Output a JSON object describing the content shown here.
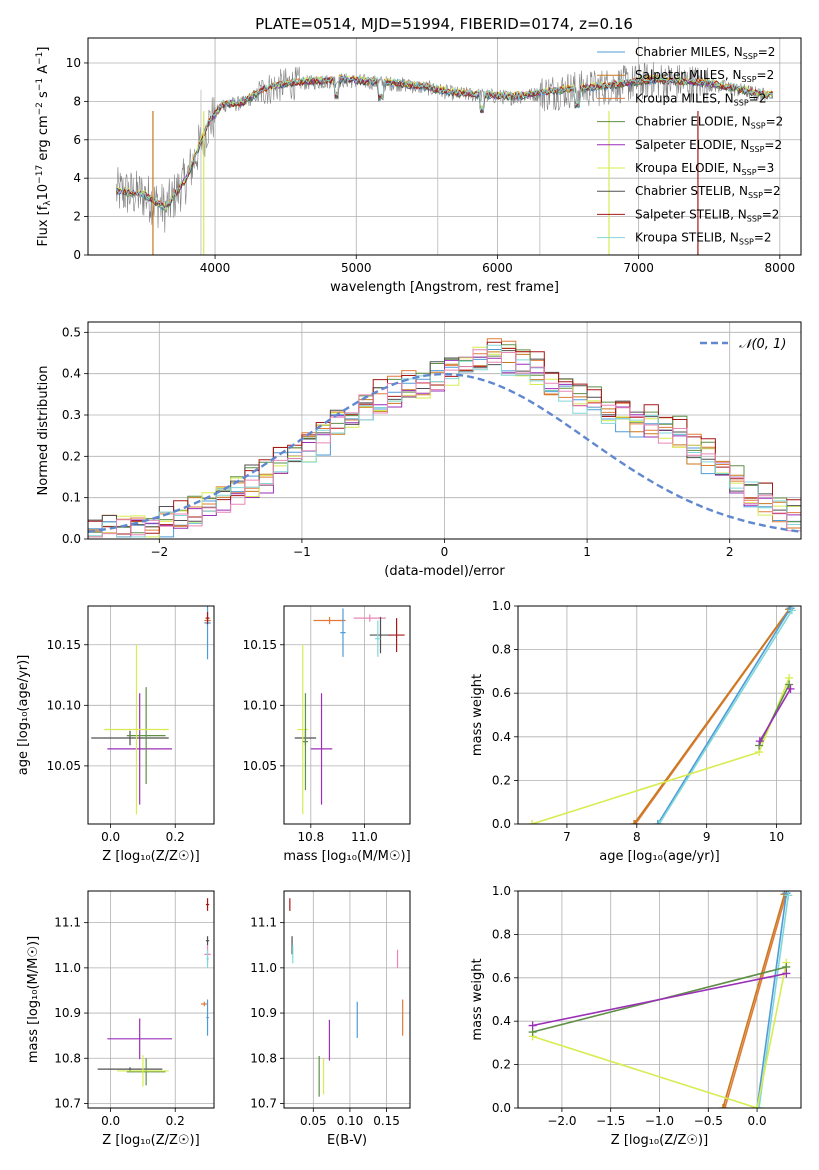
{
  "figure": {
    "title": "PLATE=0514, MJD=51994, FIBERID=0174, z=0.16",
    "colors": {
      "chabrier_miles": "#4f9bd8",
      "salpeter_miles": "#c8791f",
      "kroupa_miles": "#e07b39",
      "chabrier_elodie": "#5f8f45",
      "salpeter_elodie": "#9b2fb8",
      "kroupa_elodie": "#d8ec50",
      "chabrier_stelib": "#505050",
      "salpeter_stelib": "#a81818",
      "kroupa_stelib": "#80d8d8",
      "extra_pink": "#e886b5",
      "data": "#808080",
      "normal": "#6088d0"
    }
  },
  "chart_data": [
    {
      "id": "spectrum",
      "type": "line",
      "title": "PLATE=0514, MJD=51994, FIBERID=0174, z=0.16",
      "xlabel": "wavelength [Angstrom, rest frame]",
      "ylabel_parts": [
        "Flux [f",
        "λ",
        "10",
        "−17",
        " erg cm",
        "−2",
        " s",
        "−1",
        " A",
        "−1",
        "]"
      ],
      "xlim": [
        3100,
        8150
      ],
      "ylim": [
        0,
        11.3
      ],
      "xticks": [
        4000,
        5000,
        6000,
        7000,
        8000
      ],
      "yticks": [
        0,
        2,
        4,
        6,
        8,
        10
      ],
      "continuum": {
        "x": [
          3300,
          3500,
          3650,
          3800,
          3950,
          4050,
          4200,
          4350,
          4500,
          4700,
          4900,
          5100,
          5300,
          5500,
          5700,
          5900,
          6100,
          6300,
          6500,
          6700,
          6900,
          7100,
          7300,
          7500,
          7700,
          7900
        ],
        "y": [
          3.3,
          3.1,
          2.4,
          4.0,
          6.8,
          7.8,
          7.9,
          8.6,
          8.9,
          9.0,
          9.1,
          9.0,
          8.9,
          8.7,
          8.4,
          8.3,
          8.2,
          8.4,
          8.6,
          8.7,
          8.9,
          9.1,
          9.0,
          8.9,
          8.6,
          8.3
        ]
      },
      "series": [
        {
          "name": "Chabrier MILES, N_SSP=2",
          "label": "Chabrier MILES, N",
          "sub": "SSP",
          "suffix": "=2",
          "color": "#4f9bd8"
        },
        {
          "name": "Salpeter MILES, N_SSP=2",
          "label": "Salpeter MILES, N",
          "sub": "SSP",
          "suffix": "=2",
          "color": "#c8791f"
        },
        {
          "name": "Kroupa MILES, N_SSP=2",
          "label": "Kroupa MILES, N",
          "sub": "SSP",
          "suffix": "=2",
          "color": "#e07b39"
        },
        {
          "name": "Chabrier ELODIE, N_SSP=2",
          "label": "Chabrier ELODIE, N",
          "sub": "SSP",
          "suffix": "=2",
          "color": "#5f8f45"
        },
        {
          "name": "Salpeter ELODIE, N_SSP=2",
          "label": "Salpeter ELODIE, N",
          "sub": "SSP",
          "suffix": "=2",
          "color": "#9b2fb8"
        },
        {
          "name": "Kroupa ELODIE, N_SSP=3",
          "label": "Kroupa ELODIE, N",
          "sub": "SSP",
          "suffix": "=3",
          "color": "#d8ec50"
        },
        {
          "name": "Chabrier STELIB, N_SSP=2",
          "label": "Chabrier STELIB, N",
          "sub": "SSP",
          "suffix": "=2",
          "color": "#505050"
        },
        {
          "name": "Salpeter STELIB, N_SSP=2",
          "label": "Salpeter STELIB, N",
          "sub": "SSP",
          "suffix": "=2",
          "color": "#a81818"
        },
        {
          "name": "Kroupa STELIB, N_SSP=2",
          "label": "Kroupa STELIB, N",
          "sub": "SSP",
          "suffix": "=2",
          "color": "#80d8d8"
        }
      ],
      "legend": "upper right"
    },
    {
      "id": "residuals",
      "type": "histogram",
      "xlabel": "(data-model)/error",
      "ylabel": "Normed distribution",
      "xlim": [
        -2.5,
        2.5
      ],
      "ylim": [
        0,
        0.525
      ],
      "xticks": [
        -2,
        -1,
        0,
        1,
        2
      ],
      "yticks": [
        0.0,
        0.1,
        0.2,
        0.3,
        0.4,
        0.5
      ],
      "grid": true,
      "legend_label": "𝒩(0, 1)",
      "bin_width": 0.1,
      "base_shape": [
        0.015,
        0.02,
        0.025,
        0.03,
        0.035,
        0.045,
        0.06,
        0.07,
        0.09,
        0.1,
        0.12,
        0.14,
        0.15,
        0.19,
        0.21,
        0.22,
        0.25,
        0.28,
        0.3,
        0.32,
        0.34,
        0.36,
        0.37,
        0.38,
        0.39,
        0.41,
        0.42,
        0.44,
        0.45,
        0.44,
        0.43,
        0.41,
        0.38,
        0.36,
        0.34,
        0.33,
        0.31,
        0.3,
        0.29,
        0.28,
        0.27,
        0.25,
        0.22,
        0.2,
        0.17,
        0.14,
        0.12,
        0.09,
        0.07,
        0.05
      ]
    },
    {
      "id": "age_vs_Z",
      "type": "errorbar",
      "xlabel": "Z [log₁₀(Z/Z☉)]",
      "ylabel": "age  [log₁₀(age/yr)]",
      "xlim": [
        -0.07,
        0.32
      ],
      "ylim": [
        10.002,
        10.182
      ],
      "xticks": [
        0.0,
        0.2
      ],
      "xticklabels": [
        "0.0",
        "0.2"
      ],
      "yticks": [
        10.05,
        10.1,
        10.15
      ],
      "yticklabels": [
        "10.05",
        "10.10",
        "10.15"
      ],
      "points": [
        {
          "x": 0.09,
          "y": 10.064,
          "xerr": 0.1,
          "yerr": 0.046,
          "color": "#9b2fb8"
        },
        {
          "x": 0.06,
          "y": 10.073,
          "xerr": 0.12,
          "yerr": 0.006,
          "color": "#505050"
        },
        {
          "x": 0.11,
          "y": 10.075,
          "xerr": 0.06,
          "yerr": 0.04,
          "color": "#5f8f45"
        },
        {
          "x": 0.08,
          "y": 10.08,
          "xerr": 0.1,
          "yerr": 0.07,
          "color": "#d8ec50"
        },
        {
          "x": 0.3,
          "y": 10.17,
          "xerr": 0.01,
          "yerr": 0.003,
          "color": "#e07b39"
        },
        {
          "x": 0.3,
          "y": 10.168,
          "xerr": 0.01,
          "yerr": 0.03,
          "color": "#4f9bd8"
        },
        {
          "x": 0.3,
          "y": 10.172,
          "xerr": 0.006,
          "yerr": 0.005,
          "color": "#a81818"
        }
      ]
    },
    {
      "id": "age_vs_mass",
      "type": "errorbar",
      "xlabel": "mass [log₁₀(M/M☉)]",
      "xlim": [
        10.7,
        11.17
      ],
      "ylim": [
        10.002,
        10.182
      ],
      "xticks": [
        10.8,
        11.0
      ],
      "xticklabels": [
        "10.8",
        "11.0"
      ],
      "yticks": [
        10.05,
        10.1,
        10.15
      ],
      "yticklabels": [
        "10.05",
        "10.10",
        "10.15"
      ],
      "points": [
        {
          "x": 10.78,
          "y": 10.073,
          "xerr": 0.04,
          "yerr": 0.006,
          "color": "#505050"
        },
        {
          "x": 10.77,
          "y": 10.08,
          "xerr": 0.02,
          "yerr": 0.07,
          "color": "#d8ec50"
        },
        {
          "x": 10.78,
          "y": 10.07,
          "xerr": 0.01,
          "yerr": 0.04,
          "color": "#5f8f45"
        },
        {
          "x": 10.84,
          "y": 10.064,
          "xerr": 0.04,
          "yerr": 0.046,
          "color": "#9b2fb8"
        },
        {
          "x": 10.87,
          "y": 10.17,
          "xerr": 0.06,
          "yerr": 0.003,
          "color": "#e07b39"
        },
        {
          "x": 10.92,
          "y": 10.16,
          "xerr": 0.01,
          "yerr": 0.02,
          "color": "#4f9bd8"
        },
        {
          "x": 11.02,
          "y": 10.172,
          "xerr": 0.06,
          "yerr": 0.003,
          "color": "#e886b5"
        },
        {
          "x": 11.06,
          "y": 10.158,
          "xerr": 0.04,
          "yerr": 0.015,
          "color": "#505050"
        },
        {
          "x": 11.05,
          "y": 10.155,
          "xerr": 0.01,
          "yerr": 0.015,
          "color": "#80d8d8"
        },
        {
          "x": 11.12,
          "y": 10.158,
          "xerr": 0.03,
          "yerr": 0.014,
          "color": "#a81818"
        }
      ]
    },
    {
      "id": "mass_weight_vs_age",
      "type": "line",
      "xlabel": "age  [log₁₀(age/yr)]",
      "ylabel": "mass weight",
      "xlim": [
        6.3,
        10.35
      ],
      "ylim": [
        0,
        1
      ],
      "xticks": [
        7,
        8,
        9,
        10
      ],
      "yticks": [
        0.0,
        0.2,
        0.4,
        0.6,
        0.8,
        1.0
      ],
      "grid": true,
      "series": [
        {
          "color": "#e07b39",
          "x": [
            7.98,
            10.2
          ],
          "y": [
            0.0,
            0.99
          ]
        },
        {
          "color": "#c8791f",
          "x": [
            7.96,
            10.18
          ],
          "y": [
            0.0,
            0.985
          ]
        },
        {
          "color": "#4f9bd8",
          "x": [
            8.3,
            10.2
          ],
          "y": [
            0.0,
            0.99
          ]
        },
        {
          "color": "#80d8d8",
          "x": [
            8.32,
            10.22
          ],
          "y": [
            0.0,
            0.98
          ]
        },
        {
          "color": "#d8ec50",
          "x": [
            6.5,
            9.75,
            10.18
          ],
          "y": [
            0.0,
            0.33,
            0.67
          ]
        },
        {
          "color": "#5f8f45",
          "x": [
            9.75,
            10.18
          ],
          "y": [
            0.36,
            0.64
          ]
        },
        {
          "color": "#9b2fb8",
          "x": [
            9.76,
            10.2
          ],
          "y": [
            0.38,
            0.62
          ]
        }
      ]
    },
    {
      "id": "mass_vs_Z",
      "type": "errorbar",
      "xlabel": "Z [log₁₀(Z/Z☉)]",
      "ylabel": "mass [log₁₀(M/M☉)]",
      "xlim": [
        -0.07,
        0.32
      ],
      "ylim": [
        10.69,
        11.17
      ],
      "xticks": [
        0.0,
        0.2
      ],
      "xticklabels": [
        "0.0",
        "0.2"
      ],
      "yticks": [
        10.7,
        10.8,
        10.9,
        11.0,
        11.1
      ],
      "yticklabels": [
        "10.7",
        "10.8",
        "10.9",
        "11.0",
        "11.1"
      ],
      "points": [
        {
          "x": 0.09,
          "y": 10.843,
          "xerr": 0.1,
          "yerr": 0.045,
          "color": "#9b2fb8"
        },
        {
          "x": 0.06,
          "y": 10.776,
          "xerr": 0.1,
          "yerr": 0.004,
          "color": "#505050"
        },
        {
          "x": 0.11,
          "y": 10.77,
          "xerr": 0.06,
          "yerr": 0.03,
          "color": "#5f8f45"
        },
        {
          "x": 0.1,
          "y": 10.772,
          "xerr": 0.08,
          "yerr": 0.035,
          "color": "#d8ec50"
        },
        {
          "x": 0.29,
          "y": 10.92,
          "xerr": 0.01,
          "yerr": 0.005,
          "color": "#e07b39"
        },
        {
          "x": 0.3,
          "y": 10.89,
          "xerr": 0.004,
          "yerr": 0.04,
          "color": "#4f9bd8"
        },
        {
          "x": 0.3,
          "y": 11.14,
          "xerr": 0.005,
          "yerr": 0.014,
          "color": "#a81818"
        },
        {
          "x": 0.3,
          "y": 11.06,
          "xerr": 0.005,
          "yerr": 0.01,
          "color": "#505050"
        },
        {
          "x": 0.3,
          "y": 11.03,
          "xerr": 0.01,
          "yerr": 0.02,
          "color": "#e886b5"
        },
        {
          "x": 0.3,
          "y": 11.02,
          "xerr": 0.004,
          "yerr": 0.02,
          "color": "#80d8d8"
        }
      ]
    },
    {
      "id": "mass_vs_EBV",
      "type": "errorbar",
      "xlabel": "E(B-V)",
      "xlim": [
        0.01,
        0.182
      ],
      "ylim": [
        10.69,
        11.17
      ],
      "xticks": [
        0.05,
        0.1,
        0.15
      ],
      "xticklabels": [
        "0.05",
        "0.10",
        "0.15"
      ],
      "yticks": [
        10.7,
        10.8,
        10.9,
        11.0,
        11.1
      ],
      "yticklabels": [
        "10.7",
        "10.8",
        "10.9",
        "11.0",
        "11.1"
      ],
      "points": [
        {
          "x": 0.018,
          "y": 11.14,
          "xerr": 0,
          "yerr": 0.014,
          "color": "#a81818"
        },
        {
          "x": 0.021,
          "y": 11.05,
          "xerr": 0,
          "yerr": 0.02,
          "color": "#505050"
        },
        {
          "x": 0.022,
          "y": 11.03,
          "xerr": 0,
          "yerr": 0.02,
          "color": "#80d8d8"
        },
        {
          "x": 0.058,
          "y": 10.76,
          "xerr": 0,
          "yerr": 0.045,
          "color": "#5f8f45"
        },
        {
          "x": 0.064,
          "y": 10.76,
          "xerr": 0,
          "yerr": 0.04,
          "color": "#d8ec50"
        },
        {
          "x": 0.072,
          "y": 10.84,
          "xerr": 0,
          "yerr": 0.045,
          "color": "#9b2fb8"
        },
        {
          "x": 0.11,
          "y": 10.885,
          "xerr": 0,
          "yerr": 0.04,
          "color": "#4f9bd8"
        },
        {
          "x": 0.165,
          "y": 11.02,
          "xerr": 0,
          "yerr": 0.02,
          "color": "#e886b5"
        },
        {
          "x": 0.172,
          "y": 10.89,
          "xerr": 0,
          "yerr": 0.04,
          "color": "#e07b39"
        }
      ]
    },
    {
      "id": "mass_weight_vs_Z",
      "type": "line",
      "xlabel": "Z [log₁₀(Z/Z☉)]",
      "ylabel": "mass weight",
      "xlim": [
        -2.45,
        0.45
      ],
      "ylim": [
        0,
        1
      ],
      "xticks": [
        -2.0,
        -1.5,
        -1.0,
        -0.5,
        0.0
      ],
      "xticklabels": [
        "−2.0",
        "−1.5",
        "−1.0",
        "−0.5",
        "0.0"
      ],
      "yticks": [
        0.0,
        0.2,
        0.4,
        0.6,
        0.8,
        1.0
      ],
      "grid": true,
      "series": [
        {
          "color": "#e07b39",
          "x": [
            -0.33,
            0.3
          ],
          "y": [
            0.0,
            0.99
          ]
        },
        {
          "color": "#c8791f",
          "x": [
            -0.35,
            0.28
          ],
          "y": [
            0.0,
            0.985
          ]
        },
        {
          "color": "#4f9bd8",
          "x": [
            0.0,
            0.3
          ],
          "y": [
            0.0,
            0.99
          ]
        },
        {
          "color": "#80d8d8",
          "x": [
            0.02,
            0.32
          ],
          "y": [
            0.0,
            0.98
          ]
        },
        {
          "color": "#d8ec50",
          "x": [
            -2.3,
            0.0,
            0.3
          ],
          "y": [
            0.33,
            0.0,
            0.67
          ]
        },
        {
          "color": "#5f8f45",
          "x": [
            -2.3,
            0.3
          ],
          "y": [
            0.35,
            0.65
          ]
        },
        {
          "color": "#9b2fb8",
          "x": [
            -2.3,
            0.3
          ],
          "y": [
            0.38,
            0.62
          ]
        }
      ]
    }
  ]
}
